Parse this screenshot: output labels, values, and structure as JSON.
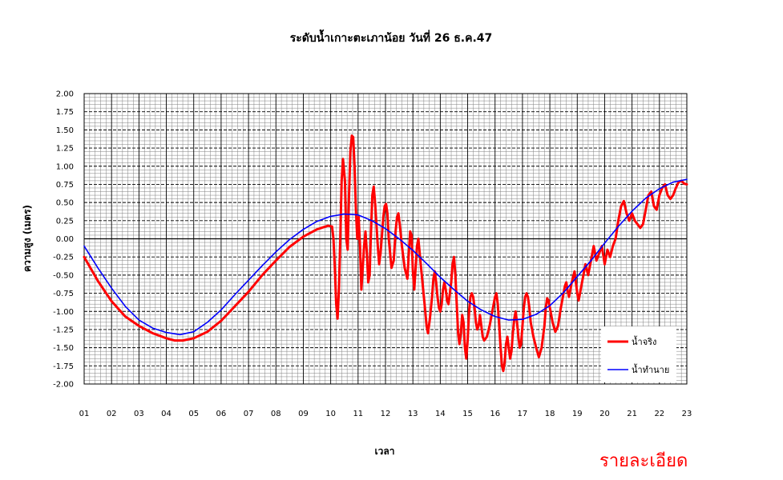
{
  "colors": {
    "actual": "#ff0000",
    "predicted": "#0000ff",
    "gridMajor": "#000000",
    "gridMinor": "#808080"
  },
  "link": {
    "label": "รายละเอียด"
  },
  "chart_data": {
    "type": "line",
    "title": "ระดับน้ำเกาะตะเภาน้อย วันที่ 26 ธ.ค.47",
    "xlabel": "เวลา",
    "ylabel": "ความสูง (เมตร)",
    "ylim": [
      -2.0,
      2.0
    ],
    "xlim": [
      1,
      23
    ],
    "grid": true,
    "legend_position": "bottom-right",
    "x_tick_labels": [
      "01",
      "02",
      "03",
      "04",
      "05",
      "06",
      "07",
      "08",
      "09",
      "10",
      "11",
      "12",
      "13",
      "14",
      "15",
      "16",
      "17",
      "18",
      "19",
      "20",
      "21",
      "22",
      "23"
    ],
    "y_tick_labels": [
      "2.00",
      "1.75",
      "1.50",
      "1.25",
      "1.00",
      "0.75",
      "0.50",
      "0.25",
      "0.00",
      "-0.25",
      "-0.50",
      "-0.75",
      "-1.00",
      "-1.25",
      "-1.50",
      "-1.75",
      "-2.00"
    ],
    "series": [
      {
        "name": "น้ำจริง",
        "color": "#ff0000",
        "points": [
          [
            1.0,
            -0.25
          ],
          [
            1.5,
            -0.58
          ],
          [
            2.0,
            -0.86
          ],
          [
            2.5,
            -1.07
          ],
          [
            3.0,
            -1.2
          ],
          [
            3.5,
            -1.3
          ],
          [
            4.0,
            -1.37
          ],
          [
            4.3,
            -1.4
          ],
          [
            4.6,
            -1.4
          ],
          [
            5.0,
            -1.37
          ],
          [
            5.5,
            -1.28
          ],
          [
            6.0,
            -1.13
          ],
          [
            6.5,
            -0.93
          ],
          [
            7.0,
            -0.73
          ],
          [
            7.5,
            -0.5
          ],
          [
            8.0,
            -0.3
          ],
          [
            8.5,
            -0.11
          ],
          [
            9.0,
            0.03
          ],
          [
            9.5,
            0.13
          ],
          [
            9.9,
            0.18
          ],
          [
            10.05,
            0.17
          ],
          [
            10.1,
            0.0
          ],
          [
            10.15,
            -0.4
          ],
          [
            10.2,
            -0.9
          ],
          [
            10.25,
            -1.1
          ],
          [
            10.3,
            -0.7
          ],
          [
            10.35,
            0.0
          ],
          [
            10.4,
            0.8
          ],
          [
            10.45,
            1.1
          ],
          [
            10.52,
            0.8
          ],
          [
            10.57,
            0.0
          ],
          [
            10.62,
            -0.15
          ],
          [
            10.67,
            0.6
          ],
          [
            10.72,
            1.2
          ],
          [
            10.77,
            1.42
          ],
          [
            10.82,
            1.4
          ],
          [
            10.87,
            1.0
          ],
          [
            10.92,
            0.4
          ],
          [
            10.97,
            0.0
          ],
          [
            11.02,
            0.3
          ],
          [
            11.07,
            -0.1
          ],
          [
            11.12,
            -0.7
          ],
          [
            11.17,
            -0.4
          ],
          [
            11.22,
            -0.1
          ],
          [
            11.27,
            0.1
          ],
          [
            11.32,
            -0.2
          ],
          [
            11.37,
            -0.6
          ],
          [
            11.42,
            -0.5
          ],
          [
            11.47,
            0.1
          ],
          [
            11.52,
            0.6
          ],
          [
            11.57,
            0.72
          ],
          [
            11.62,
            0.5
          ],
          [
            11.67,
            0.2
          ],
          [
            11.72,
            -0.1
          ],
          [
            11.77,
            -0.35
          ],
          [
            11.82,
            -0.2
          ],
          [
            11.87,
            0.05
          ],
          [
            11.92,
            0.3
          ],
          [
            11.97,
            0.45
          ],
          [
            12.02,
            0.48
          ],
          [
            12.07,
            0.35
          ],
          [
            12.12,
            0.0
          ],
          [
            12.22,
            -0.4
          ],
          [
            12.3,
            -0.3
          ],
          [
            12.37,
            0.1
          ],
          [
            12.42,
            0.3
          ],
          [
            12.47,
            0.35
          ],
          [
            12.52,
            0.2
          ],
          [
            12.6,
            -0.1
          ],
          [
            12.7,
            -0.4
          ],
          [
            12.8,
            -0.55
          ],
          [
            12.85,
            -0.2
          ],
          [
            12.9,
            0.1
          ],
          [
            12.95,
            0.05
          ],
          [
            13.0,
            -0.45
          ],
          [
            13.05,
            -0.7
          ],
          [
            13.1,
            -0.4
          ],
          [
            13.15,
            -0.1
          ],
          [
            13.2,
            0.0
          ],
          [
            13.3,
            -0.4
          ],
          [
            13.4,
            -0.8
          ],
          [
            13.5,
            -1.2
          ],
          [
            13.55,
            -1.3
          ],
          [
            13.62,
            -1.1
          ],
          [
            13.7,
            -0.8
          ],
          [
            13.75,
            -0.55
          ],
          [
            13.8,
            -0.45
          ],
          [
            13.85,
            -0.6
          ],
          [
            13.9,
            -0.8
          ],
          [
            13.95,
            -0.95
          ],
          [
            14.0,
            -1.0
          ],
          [
            14.05,
            -0.9
          ],
          [
            14.1,
            -0.7
          ],
          [
            14.15,
            -0.6
          ],
          [
            14.2,
            -0.7
          ],
          [
            14.25,
            -0.85
          ],
          [
            14.3,
            -0.9
          ],
          [
            14.35,
            -0.75
          ],
          [
            14.4,
            -0.6
          ],
          [
            14.45,
            -0.35
          ],
          [
            14.5,
            -0.25
          ],
          [
            14.55,
            -0.5
          ],
          [
            14.6,
            -0.9
          ],
          [
            14.65,
            -1.3
          ],
          [
            14.7,
            -1.45
          ],
          [
            14.75,
            -1.3
          ],
          [
            14.8,
            -1.05
          ],
          [
            14.85,
            -1.15
          ],
          [
            14.9,
            -1.5
          ],
          [
            14.95,
            -1.65
          ],
          [
            15.0,
            -1.4
          ],
          [
            15.05,
            -1.0
          ],
          [
            15.1,
            -0.8
          ],
          [
            15.15,
            -0.75
          ],
          [
            15.2,
            -0.8
          ],
          [
            15.25,
            -0.95
          ],
          [
            15.3,
            -1.15
          ],
          [
            15.35,
            -1.25
          ],
          [
            15.4,
            -1.2
          ],
          [
            15.45,
            -1.05
          ],
          [
            15.5,
            -1.2
          ],
          [
            15.55,
            -1.35
          ],
          [
            15.6,
            -1.4
          ],
          [
            15.7,
            -1.35
          ],
          [
            15.8,
            -1.2
          ],
          [
            15.9,
            -1.0
          ],
          [
            16.0,
            -0.8
          ],
          [
            16.05,
            -0.75
          ],
          [
            16.1,
            -0.9
          ],
          [
            16.15,
            -1.2
          ],
          [
            16.2,
            -1.5
          ],
          [
            16.25,
            -1.75
          ],
          [
            16.3,
            -1.82
          ],
          [
            16.35,
            -1.7
          ],
          [
            16.4,
            -1.45
          ],
          [
            16.45,
            -1.35
          ],
          [
            16.5,
            -1.5
          ],
          [
            16.55,
            -1.65
          ],
          [
            16.6,
            -1.55
          ],
          [
            16.65,
            -1.3
          ],
          [
            16.7,
            -1.1
          ],
          [
            16.75,
            -1.0
          ],
          [
            16.8,
            -1.15
          ],
          [
            16.85,
            -1.35
          ],
          [
            16.9,
            -1.5
          ],
          [
            16.95,
            -1.45
          ],
          [
            17.0,
            -1.2
          ],
          [
            17.05,
            -0.95
          ],
          [
            17.1,
            -0.8
          ],
          [
            17.15,
            -0.75
          ],
          [
            17.2,
            -0.8
          ],
          [
            17.25,
            -0.95
          ],
          [
            17.3,
            -1.15
          ],
          [
            17.4,
            -1.35
          ],
          [
            17.5,
            -1.5
          ],
          [
            17.6,
            -1.63
          ],
          [
            17.7,
            -1.5
          ],
          [
            17.8,
            -1.2
          ],
          [
            17.85,
            -0.95
          ],
          [
            17.9,
            -0.82
          ],
          [
            17.95,
            -0.85
          ],
          [
            18.0,
            -0.95
          ],
          [
            18.1,
            -1.15
          ],
          [
            18.2,
            -1.28
          ],
          [
            18.3,
            -1.2
          ],
          [
            18.4,
            -0.95
          ],
          [
            18.5,
            -0.75
          ],
          [
            18.55,
            -0.65
          ],
          [
            18.6,
            -0.6
          ],
          [
            18.65,
            -0.72
          ],
          [
            18.7,
            -0.8
          ],
          [
            18.8,
            -0.6
          ],
          [
            18.9,
            -0.45
          ],
          [
            18.95,
            -0.6
          ],
          [
            19.0,
            -0.75
          ],
          [
            19.05,
            -0.85
          ],
          [
            19.1,
            -0.75
          ],
          [
            19.2,
            -0.55
          ],
          [
            19.3,
            -0.35
          ],
          [
            19.4,
            -0.5
          ],
          [
            19.5,
            -0.3
          ],
          [
            19.6,
            -0.1
          ],
          [
            19.7,
            -0.3
          ],
          [
            19.8,
            -0.2
          ],
          [
            19.9,
            -0.1
          ],
          [
            20.0,
            -0.35
          ],
          [
            20.1,
            -0.15
          ],
          [
            20.2,
            -0.25
          ],
          [
            20.3,
            -0.1
          ],
          [
            20.4,
            0.0
          ],
          [
            20.5,
            0.25
          ],
          [
            20.6,
            0.45
          ],
          [
            20.7,
            0.52
          ],
          [
            20.8,
            0.35
          ],
          [
            20.9,
            0.25
          ],
          [
            21.0,
            0.35
          ],
          [
            21.1,
            0.25
          ],
          [
            21.3,
            0.15
          ],
          [
            21.4,
            0.2
          ],
          [
            21.5,
            0.4
          ],
          [
            21.6,
            0.6
          ],
          [
            21.7,
            0.65
          ],
          [
            21.8,
            0.45
          ],
          [
            21.9,
            0.4
          ],
          [
            22.0,
            0.6
          ],
          [
            22.1,
            0.7
          ],
          [
            22.2,
            0.75
          ],
          [
            22.3,
            0.6
          ],
          [
            22.4,
            0.55
          ],
          [
            22.5,
            0.6
          ],
          [
            22.6,
            0.7
          ],
          [
            22.7,
            0.78
          ],
          [
            22.8,
            0.8
          ],
          [
            22.9,
            0.76
          ],
          [
            23.0,
            0.75
          ]
        ]
      },
      {
        "name": "น้ำทำนาย",
        "color": "#0000ff",
        "points": [
          [
            1.0,
            -0.1
          ],
          [
            1.5,
            -0.4
          ],
          [
            2.0,
            -0.68
          ],
          [
            2.5,
            -0.93
          ],
          [
            3.0,
            -1.12
          ],
          [
            3.5,
            -1.23
          ],
          [
            4.0,
            -1.29
          ],
          [
            4.5,
            -1.32
          ],
          [
            5.0,
            -1.28
          ],
          [
            5.5,
            -1.15
          ],
          [
            6.0,
            -0.98
          ],
          [
            6.5,
            -0.77
          ],
          [
            7.0,
            -0.57
          ],
          [
            7.5,
            -0.37
          ],
          [
            8.0,
            -0.18
          ],
          [
            8.5,
            -0.01
          ],
          [
            9.0,
            0.13
          ],
          [
            9.5,
            0.24
          ],
          [
            10.0,
            0.31
          ],
          [
            10.5,
            0.34
          ],
          [
            11.0,
            0.33
          ],
          [
            11.5,
            0.25
          ],
          [
            12.0,
            0.14
          ],
          [
            12.5,
            0.0
          ],
          [
            13.0,
            -0.16
          ],
          [
            13.5,
            -0.34
          ],
          [
            14.0,
            -0.53
          ],
          [
            14.5,
            -0.7
          ],
          [
            15.0,
            -0.86
          ],
          [
            15.5,
            -0.98
          ],
          [
            16.0,
            -1.07
          ],
          [
            16.5,
            -1.12
          ],
          [
            17.0,
            -1.11
          ],
          [
            17.5,
            -1.04
          ],
          [
            18.0,
            -0.92
          ],
          [
            18.5,
            -0.74
          ],
          [
            19.0,
            -0.52
          ],
          [
            19.5,
            -0.3
          ],
          [
            20.0,
            -0.06
          ],
          [
            20.5,
            0.17
          ],
          [
            21.0,
            0.38
          ],
          [
            21.5,
            0.56
          ],
          [
            22.0,
            0.69
          ],
          [
            22.5,
            0.78
          ],
          [
            23.0,
            0.82
          ]
        ]
      }
    ]
  }
}
